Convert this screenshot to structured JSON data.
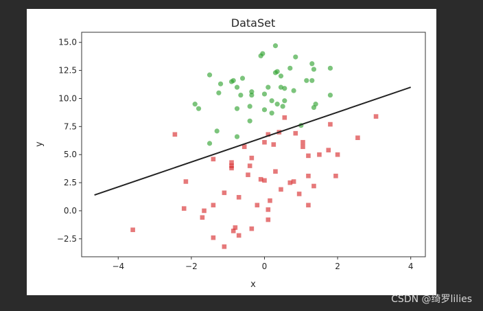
{
  "watermark": "CSDN @绮罗lilies",
  "chart_data": {
    "type": "scatter",
    "title": "DataSet",
    "xlabel": "x",
    "ylabel": "y",
    "xlim": [
      -5,
      4.4
    ],
    "ylim": [
      -4.1,
      15.9
    ],
    "xticks": [
      -4,
      -2,
      0,
      2,
      4
    ],
    "xtick_labels": [
      "−4",
      "−2",
      "0",
      "2",
      "4"
    ],
    "yticks": [
      -2.5,
      0.0,
      2.5,
      5.0,
      7.5,
      10.0,
      12.5,
      15.0
    ],
    "ytick_labels": [
      "−2.5",
      "0.0",
      "2.5",
      "5.0",
      "7.5",
      "10.0",
      "12.5",
      "15.0"
    ],
    "grid": false,
    "legend": "none",
    "series": [
      {
        "marker": "circle",
        "color": "#2ca02c",
        "points": [
          [
            -1.5,
            12.1
          ],
          [
            -1.2,
            11.3
          ],
          [
            -0.9,
            11.5
          ],
          [
            -0.85,
            11.6
          ],
          [
            -0.6,
            11.8
          ],
          [
            -0.75,
            11.0
          ],
          [
            -1.25,
            10.5
          ],
          [
            -0.65,
            10.3
          ],
          [
            -0.35,
            10.6
          ],
          [
            -0.35,
            10.3
          ],
          [
            0.0,
            10.4
          ],
          [
            0.1,
            11.0
          ],
          [
            -1.9,
            9.5
          ],
          [
            -1.8,
            9.1
          ],
          [
            -0.75,
            9.1
          ],
          [
            -0.4,
            9.3
          ],
          [
            0.0,
            9.0
          ],
          [
            0.2,
            8.7
          ],
          [
            0.2,
            9.8
          ],
          [
            0.35,
            9.5
          ],
          [
            0.5,
            9.3
          ],
          [
            0.55,
            9.8
          ],
          [
            0.3,
            12.3
          ],
          [
            0.35,
            12.4
          ],
          [
            0.45,
            12.0
          ],
          [
            0.45,
            11.0
          ],
          [
            0.55,
            10.9
          ],
          [
            0.7,
            12.7
          ],
          [
            0.8,
            10.7
          ],
          [
            0.85,
            13.7
          ],
          [
            0.3,
            14.7
          ],
          [
            -0.05,
            14.0
          ],
          [
            -0.1,
            13.8
          ],
          [
            1.15,
            11.6
          ],
          [
            1.3,
            11.6
          ],
          [
            1.3,
            13.1
          ],
          [
            1.35,
            12.6
          ],
          [
            1.35,
            9.2
          ],
          [
            1.4,
            9.5
          ],
          [
            1.8,
            12.7
          ],
          [
            1.8,
            10.3
          ],
          [
            1.0,
            7.6
          ],
          [
            -0.4,
            8.0
          ],
          [
            -1.3,
            7.1
          ],
          [
            -0.75,
            6.6
          ],
          [
            -1.5,
            6.0
          ]
        ]
      },
      {
        "marker": "square",
        "color": "#d62728",
        "points": [
          [
            -2.45,
            6.8
          ],
          [
            -3.6,
            -1.7
          ],
          [
            -2.15,
            2.6
          ],
          [
            -2.2,
            0.2
          ],
          [
            -1.65,
            0.0
          ],
          [
            -1.7,
            -0.6
          ],
          [
            -1.4,
            0.5
          ],
          [
            -1.4,
            -2.4
          ],
          [
            -1.4,
            4.6
          ],
          [
            -1.1,
            1.6
          ],
          [
            -1.1,
            -3.2
          ],
          [
            -0.9,
            4.3
          ],
          [
            -0.9,
            4.0
          ],
          [
            -0.9,
            3.8
          ],
          [
            -0.8,
            -1.5
          ],
          [
            -0.85,
            -1.8
          ],
          [
            -0.7,
            1.2
          ],
          [
            -0.7,
            -2.2
          ],
          [
            -0.55,
            5.7
          ],
          [
            -0.45,
            3.2
          ],
          [
            -0.4,
            4.0
          ],
          [
            -0.35,
            4.7
          ],
          [
            -0.35,
            -1.6
          ],
          [
            -0.2,
            0.5
          ],
          [
            -0.1,
            2.8
          ],
          [
            0.0,
            2.7
          ],
          [
            0.0,
            6.1
          ],
          [
            0.1,
            6.8
          ],
          [
            0.1,
            0.1
          ],
          [
            0.1,
            -0.8
          ],
          [
            0.15,
            0.9
          ],
          [
            0.25,
            5.9
          ],
          [
            0.3,
            3.5
          ],
          [
            0.4,
            7.0
          ],
          [
            0.45,
            1.9
          ],
          [
            0.55,
            8.3
          ],
          [
            0.7,
            2.5
          ],
          [
            0.8,
            2.6
          ],
          [
            0.85,
            6.9
          ],
          [
            0.95,
            1.5
          ],
          [
            1.05,
            5.7
          ],
          [
            1.05,
            6.1
          ],
          [
            1.2,
            4.9
          ],
          [
            1.2,
            3.1
          ],
          [
            1.2,
            0.5
          ],
          [
            1.35,
            2.2
          ],
          [
            1.5,
            5.0
          ],
          [
            1.75,
            5.4
          ],
          [
            1.8,
            7.7
          ],
          [
            1.95,
            3.1
          ],
          [
            2.0,
            5.0
          ],
          [
            2.55,
            6.5
          ],
          [
            3.05,
            8.4
          ]
        ]
      }
    ],
    "line": {
      "color": "#222222",
      "x": [
        -4.65,
        4.0
      ],
      "y": [
        1.4,
        11.0
      ]
    }
  }
}
